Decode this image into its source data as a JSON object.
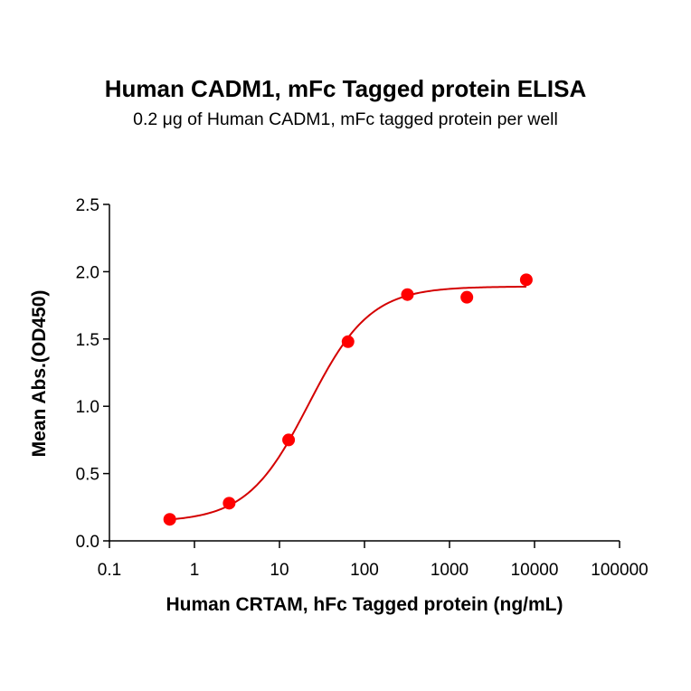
{
  "chart_data": {
    "type": "scatter",
    "title": "Human CADM1, mFc Tagged protein ELISA",
    "subtitle": "0.2 μg of Human CADM1, mFc tagged protein per well",
    "xlabel": "Human CRTAM, hFc Tagged protein (ng/mL)",
    "ylabel": "Mean Abs.(OD450)",
    "xscale": "log",
    "xlim": [
      0.1,
      100000
    ],
    "ylim": [
      0.0,
      2.5
    ],
    "x_ticks": [
      0.1,
      1,
      10,
      100,
      1000,
      10000,
      100000
    ],
    "x_tick_labels": [
      "0.1",
      "1",
      "10",
      "100",
      "1000",
      "10000",
      "100000"
    ],
    "y_ticks": [
      0.0,
      0.5,
      1.0,
      1.5,
      2.0,
      2.5
    ],
    "y_tick_labels": [
      "0.0",
      "0.5",
      "1.0",
      "1.5",
      "2.0",
      "2.5"
    ],
    "grid": false,
    "legend": null,
    "series": [
      {
        "name": "Human CRTAM, hFc Tagged protein",
        "x": [
          0.512,
          2.56,
          12.8,
          64,
          320,
          1600,
          8000
        ],
        "y": [
          0.16,
          0.28,
          0.75,
          1.48,
          1.83,
          1.81,
          1.94
        ],
        "marker_color": "#ff0000",
        "fit": {
          "model": "4PL",
          "bottom": 0.14,
          "top": 1.89,
          "ec50": 22,
          "hill": 1.2,
          "x_range": [
            0.512,
            8000
          ],
          "line_color": "#d40000"
        }
      }
    ]
  }
}
